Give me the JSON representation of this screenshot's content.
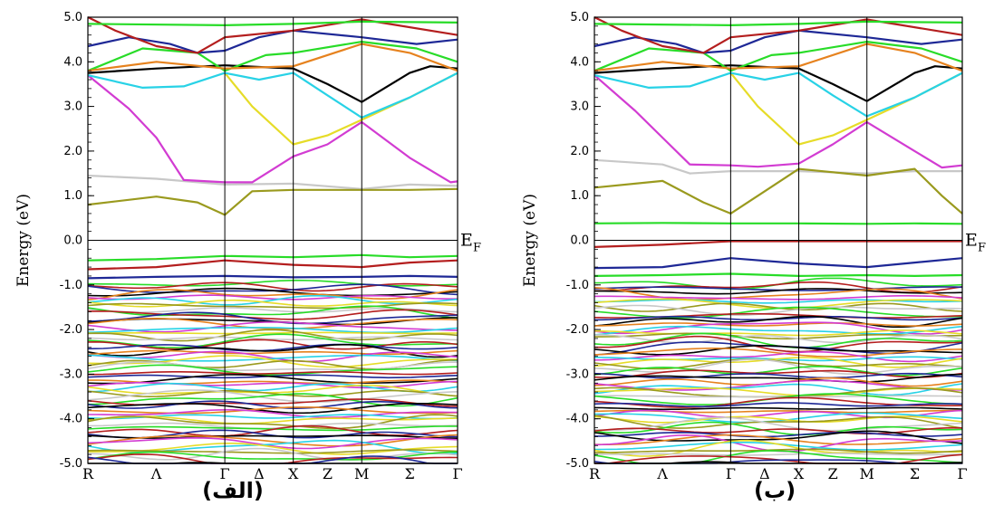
{
  "chart_data": [
    {
      "type": "line",
      "panel_label": "(الف)",
      "ylabel": "Energy (eV)",
      "ylim": [
        -5.0,
        5.0
      ],
      "yticks": [
        "5.0",
        "4.0",
        "3.0",
        "2.0",
        "1.0",
        "0.0",
        "-1.0",
        "-2.0",
        "-3.0",
        "-4.0",
        "-5.0"
      ],
      "k_points": [
        "R",
        "Λ",
        "Γ",
        "Δ",
        "X",
        "Z",
        "M",
        "Σ",
        "Γ"
      ],
      "k_positions": [
        0,
        0.5,
        1.0,
        1.25,
        1.5,
        1.75,
        2.0,
        2.35,
        2.7
      ],
      "high_symmetry_lines": [
        1.0,
        1.5,
        2.0
      ],
      "fermi_label": "E",
      "fermi_subscript": "F",
      "fermi_energy": 0.0,
      "series": [
        {
          "color": "#c8c8c8",
          "k": [
            0,
            0.5,
            1.0,
            1.5,
            2.0,
            2.35,
            2.7
          ],
          "e": [
            1.45,
            1.38,
            1.25,
            1.27,
            1.15,
            1.25,
            1.22
          ]
        },
        {
          "color": "#9a9a1e",
          "k": [
            0,
            0.5,
            0.8,
            1.0,
            1.2,
            1.5,
            2.0,
            2.35,
            2.7
          ],
          "e": [
            0.8,
            0.98,
            0.85,
            0.57,
            1.1,
            1.13,
            1.13,
            1.13,
            1.15
          ]
        },
        {
          "color": "#d23cd2",
          "k": [
            0,
            0.3,
            0.5,
            0.7,
            1.0,
            1.2,
            1.5,
            1.75,
            2.0,
            2.35,
            2.65,
            2.7
          ],
          "e": [
            3.7,
            2.95,
            2.3,
            1.35,
            1.3,
            1.3,
            1.88,
            2.15,
            2.65,
            1.85,
            1.3,
            1.32
          ]
        },
        {
          "color": "#e6dc28",
          "k": [
            1.0,
            1.2,
            1.5,
            1.75,
            2.0,
            2.35,
            2.7
          ],
          "e": [
            3.75,
            3.0,
            2.15,
            2.35,
            2.7,
            3.2,
            3.75
          ]
        },
        {
          "color": "#28d2e6",
          "k": [
            0,
            0.4,
            0.7,
            1.0,
            1.25,
            1.5,
            1.75,
            2.0,
            2.35,
            2.7
          ],
          "e": [
            3.7,
            3.42,
            3.45,
            3.75,
            3.6,
            3.75,
            3.25,
            2.75,
            3.2,
            3.75
          ]
        },
        {
          "color": "#000000",
          "k": [
            0,
            0.5,
            1.0,
            1.5,
            1.75,
            2.0,
            2.35,
            2.5,
            2.7
          ],
          "e": [
            3.75,
            3.85,
            3.92,
            3.85,
            3.5,
            3.1,
            3.75,
            3.9,
            3.85
          ]
        },
        {
          "color": "#28dc28",
          "k": [
            0,
            0.4,
            0.8,
            1.0,
            1.3,
            1.5,
            2.0,
            2.4,
            2.7
          ],
          "e": [
            3.8,
            4.3,
            4.2,
            3.8,
            4.15,
            4.2,
            4.45,
            4.3,
            4.0
          ]
        },
        {
          "color": "#e6821e",
          "k": [
            0,
            0.5,
            1.0,
            1.5,
            2.0,
            2.35,
            2.7
          ],
          "e": [
            3.8,
            4.0,
            3.85,
            3.9,
            4.4,
            4.2,
            3.8
          ]
        },
        {
          "color": "#1e2896",
          "k": [
            0,
            0.3,
            0.6,
            0.8,
            1.0,
            1.25,
            1.5,
            2.0,
            2.4,
            2.7
          ],
          "e": [
            4.35,
            4.55,
            4.4,
            4.2,
            4.25,
            4.55,
            4.7,
            4.55,
            4.4,
            4.5
          ]
        },
        {
          "color": "#b41e1e",
          "k": [
            0,
            0.2,
            0.5,
            0.8,
            1.0,
            1.5,
            2.0,
            2.7
          ],
          "e": [
            5.0,
            4.7,
            4.35,
            4.2,
            4.55,
            4.7,
            4.95,
            4.6
          ]
        },
        {
          "color": "#28dc28",
          "k": [
            0,
            1.0,
            1.5,
            2.0,
            2.7
          ],
          "e": [
            4.85,
            4.82,
            4.85,
            4.9,
            4.88
          ]
        },
        {
          "color": "#28dc28",
          "k": [
            0,
            0.5,
            1.0,
            1.5,
            2.0,
            2.35,
            2.7
          ],
          "e": [
            -0.45,
            -0.42,
            -0.35,
            -0.38,
            -0.33,
            -0.38,
            -0.35
          ]
        },
        {
          "color": "#b41e1e",
          "k": [
            0,
            0.5,
            1.0,
            1.5,
            2.0,
            2.35,
            2.7
          ],
          "e": [
            -0.65,
            -0.6,
            -0.45,
            -0.55,
            -0.6,
            -0.5,
            -0.45
          ]
        },
        {
          "color": "#1e2896",
          "k": [
            0,
            0.5,
            1.0,
            1.5,
            2.0,
            2.35,
            2.7
          ],
          "e": [
            -0.85,
            -0.82,
            -0.8,
            -0.83,
            -0.82,
            -0.8,
            -0.82
          ]
        }
      ]
    },
    {
      "type": "line",
      "panel_label": "(ب)",
      "ylabel": "Energy (eV)",
      "ylim": [
        -5.0,
        5.0
      ],
      "yticks": [
        "5.0",
        "4.0",
        "3.0",
        "2.0",
        "1.0",
        "0.0",
        "-1.0",
        "-2.0",
        "-3.0",
        "-4.0",
        "-5.0"
      ],
      "k_points": [
        "R",
        "Λ",
        "Γ",
        "Δ",
        "X",
        "Z",
        "M",
        "Σ",
        "Γ"
      ],
      "k_positions": [
        0,
        0.5,
        1.0,
        1.25,
        1.5,
        1.75,
        2.0,
        2.35,
        2.7
      ],
      "high_symmetry_lines": [
        1.0,
        1.5,
        2.0
      ],
      "fermi_label": "E",
      "fermi_subscript": "F",
      "fermi_energy": 0.0,
      "series": [
        {
          "color": "#c8c8c8",
          "k": [
            0,
            0.5,
            0.7,
            1.0,
            1.5,
            2.0,
            2.35,
            2.7
          ],
          "e": [
            1.8,
            1.7,
            1.5,
            1.55,
            1.55,
            1.5,
            1.55,
            1.55
          ]
        },
        {
          "color": "#9a9a1e",
          "k": [
            0,
            0.5,
            0.8,
            1.0,
            1.25,
            1.5,
            2.0,
            2.35,
            2.55,
            2.7
          ],
          "e": [
            1.18,
            1.33,
            0.85,
            0.6,
            1.1,
            1.6,
            1.45,
            1.6,
            1.0,
            0.6
          ]
        },
        {
          "color": "#d23cd2",
          "k": [
            0,
            0.3,
            0.5,
            0.7,
            1.0,
            1.2,
            1.5,
            1.75,
            2.0,
            2.35,
            2.55,
            2.7
          ],
          "e": [
            3.7,
            2.9,
            2.3,
            1.7,
            1.68,
            1.65,
            1.72,
            2.15,
            2.65,
            2.0,
            1.63,
            1.68
          ]
        },
        {
          "color": "#e6dc28",
          "k": [
            1.0,
            1.2,
            1.5,
            1.75,
            2.0,
            2.35,
            2.7
          ],
          "e": [
            3.75,
            3.0,
            2.15,
            2.35,
            2.7,
            3.2,
            3.75
          ]
        },
        {
          "color": "#28d2e6",
          "k": [
            0,
            0.4,
            0.7,
            1.0,
            1.25,
            1.5,
            1.75,
            2.0,
            2.35,
            2.7
          ],
          "e": [
            3.7,
            3.42,
            3.45,
            3.75,
            3.6,
            3.75,
            3.25,
            2.78,
            3.2,
            3.75
          ]
        },
        {
          "color": "#000000",
          "k": [
            0,
            0.5,
            1.0,
            1.5,
            1.75,
            2.0,
            2.35,
            2.5,
            2.7
          ],
          "e": [
            3.75,
            3.85,
            3.92,
            3.85,
            3.5,
            3.12,
            3.75,
            3.9,
            3.85
          ]
        },
        {
          "color": "#28dc28",
          "k": [
            0,
            0.4,
            0.8,
            1.0,
            1.3,
            1.5,
            2.0,
            2.4,
            2.7
          ],
          "e": [
            3.8,
            4.3,
            4.2,
            3.8,
            4.15,
            4.2,
            4.45,
            4.3,
            4.0
          ]
        },
        {
          "color": "#e6821e",
          "k": [
            0,
            0.5,
            1.0,
            1.5,
            2.0,
            2.35,
            2.7
          ],
          "e": [
            3.8,
            4.0,
            3.85,
            3.9,
            4.4,
            4.2,
            3.8
          ]
        },
        {
          "color": "#1e2896",
          "k": [
            0,
            0.3,
            0.6,
            0.8,
            1.0,
            1.25,
            1.5,
            2.0,
            2.4,
            2.7
          ],
          "e": [
            4.35,
            4.55,
            4.4,
            4.2,
            4.25,
            4.55,
            4.7,
            4.55,
            4.4,
            4.5
          ]
        },
        {
          "color": "#b41e1e",
          "k": [
            0,
            0.2,
            0.5,
            0.8,
            1.0,
            1.5,
            2.0,
            2.7
          ],
          "e": [
            5.0,
            4.7,
            4.35,
            4.2,
            4.55,
            4.7,
            4.95,
            4.6
          ]
        },
        {
          "color": "#28dc28",
          "k": [
            0,
            1.0,
            1.5,
            2.0,
            2.7
          ],
          "e": [
            4.85,
            4.82,
            4.85,
            4.9,
            4.88
          ]
        },
        {
          "color": "#28dc28",
          "k": [
            0,
            0.5,
            1.0,
            1.5,
            2.0,
            2.35,
            2.7
          ],
          "e": [
            0.38,
            0.39,
            0.38,
            0.38,
            0.37,
            0.38,
            0.37
          ]
        },
        {
          "color": "#b41e1e",
          "k": [
            0,
            0.5,
            1.0,
            1.5,
            2.0,
            2.7
          ],
          "e": [
            -0.15,
            -0.1,
            -0.02,
            -0.02,
            -0.02,
            -0.02
          ]
        },
        {
          "color": "#1e2896",
          "k": [
            0,
            0.5,
            1.0,
            1.5,
            2.0,
            2.35,
            2.7
          ],
          "e": [
            -0.62,
            -0.6,
            -0.4,
            -0.52,
            -0.6,
            -0.5,
            -0.4
          ]
        },
        {
          "color": "#28dc28",
          "k": [
            0,
            0.5,
            1.0,
            1.5,
            2.0,
            2.35,
            2.7
          ],
          "e": [
            -0.8,
            -0.78,
            -0.75,
            -0.8,
            -0.78,
            -0.8,
            -0.78
          ]
        }
      ]
    }
  ],
  "valence_band_colors": [
    "#28dc28",
    "#b41e1e",
    "#1e2896",
    "#000000",
    "#e6821e",
    "#d23cd2",
    "#28d2e6",
    "#e6dc28",
    "#9a9a1e",
    "#c8c8c8"
  ]
}
